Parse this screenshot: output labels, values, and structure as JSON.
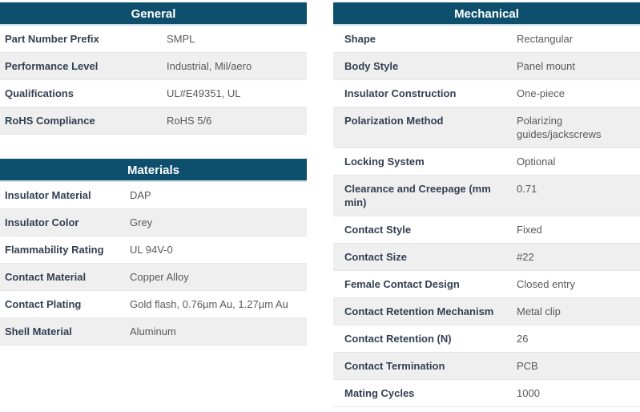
{
  "colors": {
    "header_bg": "#0e4f6e",
    "header_text": "#ffffff",
    "label_text": "#333f52",
    "value_text": "#595959",
    "row_alt_bg": "#efefef"
  },
  "tables": {
    "general": {
      "title": "General",
      "rows": [
        {
          "label": "Part Number Prefix",
          "value": "SMPL"
        },
        {
          "label": "Performance Level",
          "value": "Industrial, Mil/aero"
        },
        {
          "label": "Qualifications",
          "value": "UL#E49351, UL"
        },
        {
          "label": "RoHS Compliance",
          "value": "RoHS 5/6"
        }
      ]
    },
    "materials": {
      "title": "Materials",
      "rows": [
        {
          "label": "Insulator Material",
          "value": "DAP"
        },
        {
          "label": "Insulator Color",
          "value": "Grey"
        },
        {
          "label": "Flammability Rating",
          "value": "UL 94V-0"
        },
        {
          "label": "Contact Material",
          "value": "Copper Alloy"
        },
        {
          "label": "Contact Plating",
          "value": "Gold flash, 0.76µm Au, 1.27µm Au"
        },
        {
          "label": "Shell Material",
          "value": "Aluminum"
        }
      ]
    },
    "mechanical": {
      "title": "Mechanical",
      "rows": [
        {
          "label": "Shape",
          "value": "Rectangular"
        },
        {
          "label": "Body Style",
          "value": "Panel mount"
        },
        {
          "label": "Insulator Construction",
          "value": "One-piece"
        },
        {
          "label": "Polarization Method",
          "value": "Polarizing guides/jackscrews"
        },
        {
          "label": "Locking System",
          "value": "Optional"
        },
        {
          "label": "Clearance and Creepage (mm min)",
          "value": "0.71"
        },
        {
          "label": "Contact Style",
          "value": "Fixed"
        },
        {
          "label": "Contact Size",
          "value": "#22"
        },
        {
          "label": "Female Contact Design",
          "value": "Closed entry"
        },
        {
          "label": "Contact Retention Mechanism",
          "value": "Metal clip"
        },
        {
          "label": "Contact Retention (N)",
          "value": "26"
        },
        {
          "label": "Contact Termination",
          "value": "PCB"
        },
        {
          "label": "Mating Cycles",
          "value": "1000"
        }
      ]
    }
  }
}
